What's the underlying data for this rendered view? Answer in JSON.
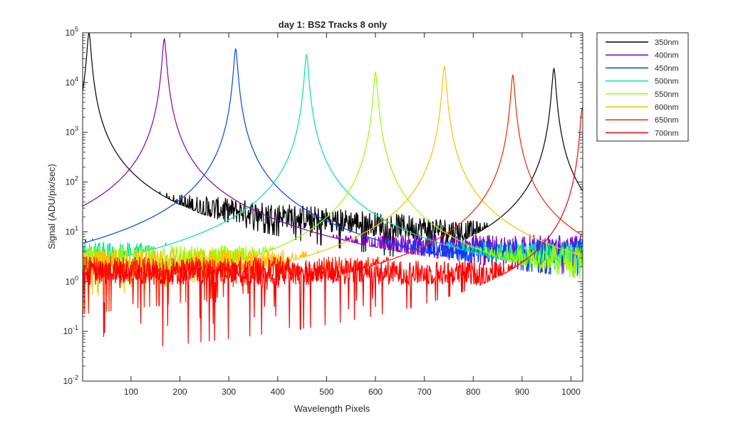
{
  "chart_data": {
    "type": "line",
    "title": "day 1: BS2   Tracks 8 only",
    "xlabel": "Wavelength Pixels",
    "ylabel": "Signal (ADU/pix/sec)",
    "xlim": [
      1,
      1024
    ],
    "ylim": [
      0.01,
      100000
    ],
    "yscale": "log",
    "grid": false,
    "legend_position": "outside-top-right",
    "x_ticks": [
      100,
      200,
      300,
      400,
      500,
      600,
      700,
      800,
      900,
      1000
    ],
    "x_tick_labels": [
      "100",
      "200",
      "300",
      "400",
      "500",
      "600",
      "700",
      "800",
      "900",
      "1000"
    ],
    "y_ticks": [
      0.01,
      0.1,
      1,
      10,
      100,
      1000,
      10000,
      100000
    ],
    "y_tick_labels": [
      {
        "base": "10",
        "exp": "-2"
      },
      {
        "base": "10",
        "exp": "-1"
      },
      {
        "base": "10",
        "exp": "0"
      },
      {
        "base": "10",
        "exp": "1"
      },
      {
        "base": "10",
        "exp": "2"
      },
      {
        "base": "10",
        "exp": "3"
      },
      {
        "base": "10",
        "exp": "4"
      },
      {
        "base": "10",
        "exp": "5"
      }
    ],
    "series": [
      {
        "name": "350nm",
        "color": "#000000",
        "peaks": [
          {
            "x": 14,
            "y": 100000
          },
          {
            "x": 965,
            "y": 19000
          }
        ],
        "noise": {
          "start": 50,
          "end": 6,
          "min": 0.5
        }
      },
      {
        "name": "400nm",
        "color": "#7f00bf",
        "peaks": [
          {
            "x": 168,
            "y": 75000
          }
        ],
        "noise": {
          "start": 5,
          "end": 5,
          "min": 0.15
        }
      },
      {
        "name": "450nm",
        "color": "#0044ff",
        "peaks": [
          {
            "x": 314,
            "y": 47000
          }
        ],
        "noise": {
          "start": 4,
          "end": 4,
          "min": 0.15
        }
      },
      {
        "name": "500nm",
        "color": "#00e6a0",
        "peaks": [
          {
            "x": 459,
            "y": 36000
          }
        ],
        "noise": {
          "start": 3.5,
          "end": 3.5,
          "min": 0.1
        }
      },
      {
        "name": "550nm",
        "color": "#99ff00",
        "peaks": [
          {
            "x": 600,
            "y": 16000
          }
        ],
        "noise": {
          "start": 3,
          "end": 3,
          "min": 0.1
        }
      },
      {
        "name": "600nm",
        "color": "#ffbf00",
        "peaks": [
          {
            "x": 741,
            "y": 21000
          }
        ],
        "noise": {
          "start": 2.5,
          "end": 2.5,
          "min": 0.05
        }
      },
      {
        "name": "650nm",
        "color": "#ff2200",
        "peaks": [
          {
            "x": 881,
            "y": 14000
          }
        ],
        "noise": {
          "start": 1.8,
          "end": 1.8,
          "min": 0.03
        }
      },
      {
        "name": "700nm",
        "color": "#ff0000",
        "peaks": [
          {
            "x": 1023,
            "y": 3000
          }
        ],
        "noise": {
          "start": 1.5,
          "end": 1.5,
          "min": 0.01
        }
      }
    ]
  }
}
